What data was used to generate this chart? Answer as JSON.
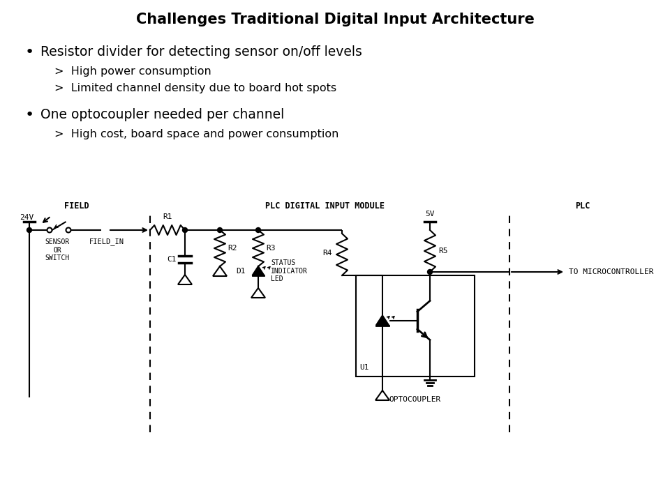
{
  "title": "Challenges Traditional Digital Input Architecture",
  "bullet1": "Resistor divider for detecting sensor on/off levels",
  "sub1a": ">  High power consumption",
  "sub1b": ">  Limited channel density due to board hot spots",
  "bullet2": "One optocoupler needed per channel",
  "sub2a": ">  High cost, board space and power consumption",
  "label_field": "FIELD",
  "label_plc_module": "PLC DIGITAL INPUT MODULE",
  "label_plc": "PLC",
  "label_24v": "24V",
  "label_5v": "5V",
  "label_sensor": "SENSOR\nOR\nSWITCH",
  "label_field_in": "FIELD_IN",
  "label_r1": "R1",
  "label_r2": "R2",
  "label_r3": "R3",
  "label_r4": "R4",
  "label_r5": "R5",
  "label_c1": "C1",
  "label_d1": "D1",
  "label_u1": "U1",
  "label_status": "STATUS\nINDICATOR\nLED",
  "label_optocoupler": "OPTOCOUPLER",
  "label_to_micro": "TO MICROCONTROLLER",
  "bg_color": "#ffffff",
  "line_color": "#000000",
  "text_color": "#000000"
}
